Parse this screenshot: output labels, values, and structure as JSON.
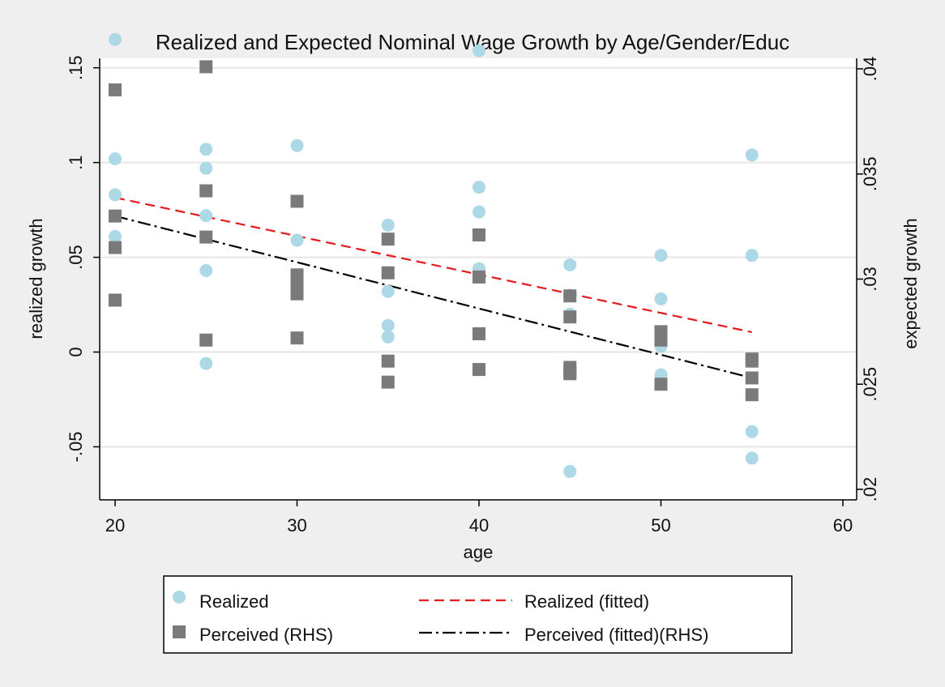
{
  "chart_data": {
    "type": "scatter",
    "title": "Realized and Expected Nominal Wage Growth by Age/Gender/Educ",
    "xlabel": "age",
    "ylabel": "realized growth",
    "y2label": "expected growth",
    "xlim": [
      20,
      60
    ],
    "ylim": [
      -0.078,
      0.155
    ],
    "y2lim": [
      0.0195,
      0.0405
    ],
    "x_ticks": [
      20,
      30,
      40,
      50,
      60
    ],
    "x_tick_labels": [
      "20",
      "30",
      "40",
      "50",
      "60"
    ],
    "y_ticks": [
      -0.05,
      0,
      0.05,
      0.1,
      0.15
    ],
    "y_tick_labels": [
      "-.05",
      "0",
      ".05",
      ".1",
      ".15"
    ],
    "y2_ticks": [
      0.02,
      0.025,
      0.03,
      0.035,
      0.04
    ],
    "y2_tick_labels": [
      ".02",
      ".025",
      ".03",
      ".035",
      ".04"
    ],
    "grid": true,
    "legend_position": "bottom",
    "colors": {
      "background": "#efefef",
      "plot_bg": "#ffffff",
      "realized": "#add8e6",
      "perceived": "#7a7a7a",
      "realized_fit": "#e41a1c",
      "perceived_fit": "#000000",
      "grid": "#e6e6e6"
    },
    "series": [
      {
        "name": "Realized",
        "axis": "left",
        "kind": "points",
        "marker": "circle",
        "x": [
          20,
          20,
          20,
          20,
          25,
          25,
          25,
          25,
          25,
          30,
          30,
          30,
          30,
          35,
          35,
          35,
          35,
          40,
          40,
          40,
          40,
          45,
          45,
          45,
          45,
          50,
          50,
          50,
          50,
          55,
          55,
          55,
          55
        ],
        "y": [
          0.165,
          0.102,
          0.083,
          0.061,
          0.107,
          0.097,
          0.043,
          -0.006,
          0.072,
          0.109,
          0.059,
          0.031,
          0.04,
          0.067,
          0.032,
          0.014,
          0.008,
          0.159,
          0.087,
          0.074,
          0.044,
          0.046,
          0.03,
          0.02,
          -0.063,
          0.051,
          0.028,
          0.003,
          -0.012,
          0.104,
          0.051,
          -0.042,
          -0.056
        ]
      },
      {
        "name": "Perceived (RHS)",
        "axis": "right",
        "kind": "points",
        "marker": "square",
        "x": [
          20,
          20,
          20,
          20,
          25,
          25,
          25,
          25,
          30,
          30,
          30,
          30,
          30,
          35,
          35,
          35,
          35,
          40,
          40,
          40,
          40,
          45,
          45,
          45,
          45,
          45,
          50,
          50,
          50,
          50,
          55,
          55,
          55,
          55
        ],
        "y": [
          0.039,
          0.033,
          0.0315,
          0.029,
          0.0401,
          0.0342,
          0.032,
          0.0271,
          0.0337,
          0.0302,
          0.0298,
          0.0293,
          0.0272,
          0.0319,
          0.0303,
          0.0261,
          0.0251,
          0.0321,
          0.0301,
          0.0274,
          0.0257,
          0.0292,
          0.0282,
          0.0258,
          0.0255,
          0.0256,
          0.0275,
          0.0272,
          0.0271,
          0.025,
          0.0262,
          0.0261,
          0.0253,
          0.0245
        ]
      },
      {
        "name": "Realized (fitted)",
        "axis": "left",
        "kind": "line",
        "dash": "dashed",
        "x": [
          20,
          55
        ],
        "y": [
          0.0815,
          0.0105
        ]
      },
      {
        "name": "Perceived (fitted)(RHS)",
        "axis": "right",
        "kind": "line",
        "dash": "dash-dot",
        "x": [
          20,
          55
        ],
        "y": [
          0.033,
          0.0253
        ]
      }
    ],
    "legend": [
      {
        "label": "Realized"
      },
      {
        "label": "Realized (fitted)"
      },
      {
        "label": "Perceived (RHS)"
      },
      {
        "label": "Perceived (fitted)(RHS)"
      }
    ]
  }
}
